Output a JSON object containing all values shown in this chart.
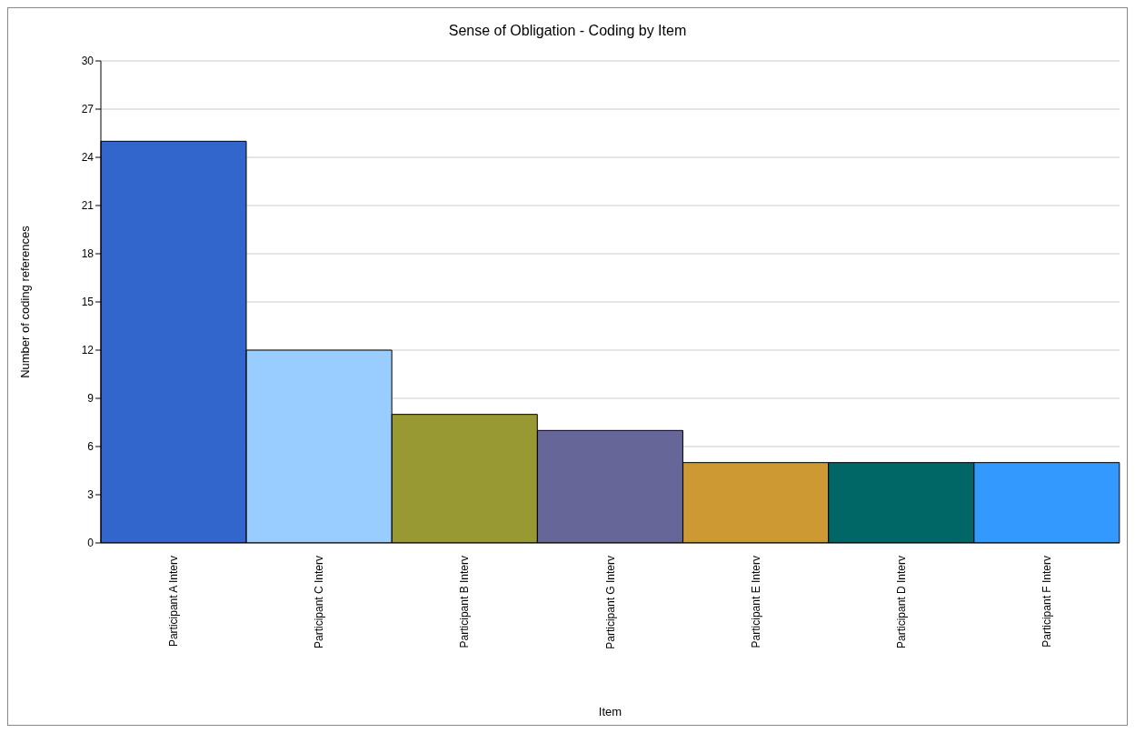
{
  "chart_data": {
    "type": "bar",
    "title": "Sense of Obligation - Coding by Item",
    "xlabel": "Item",
    "ylabel": "Number of coding references",
    "categories": [
      "Participant A Interv",
      "Participant C Interv",
      "Participant B Interv",
      "Participant G Interv",
      "Participant E Interv",
      "Participant D Interv",
      "Participant F Interv"
    ],
    "values": [
      25,
      12,
      8,
      7,
      5,
      5,
      5
    ],
    "colors": [
      "#3366cc",
      "#99ccff",
      "#999933",
      "#666699",
      "#cc9933",
      "#006666",
      "#3399ff"
    ],
    "ylim": [
      0,
      30
    ],
    "yticks": [
      0,
      3,
      6,
      9,
      12,
      15,
      18,
      21,
      24,
      27,
      30
    ],
    "grid": "y",
    "legend": false
  }
}
